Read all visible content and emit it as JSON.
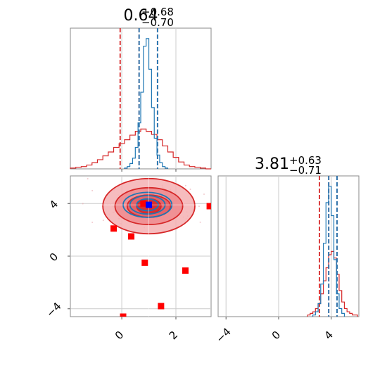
{
  "chart_data": {
    "type": "corner",
    "panels": [
      {
        "panel": "marginal-1",
        "type": "histogram",
        "title": {
          "value": "0.64",
          "plus": "+0.68",
          "minus": "−0.70"
        },
        "xlim": [
          -1.9,
          3.3
        ],
        "xticks": [
          0,
          2
        ],
        "series": [
          {
            "name": "",
            "color": "#d62728",
            "bins": [
              -1.9,
              -1.7,
              -1.5,
              -1.3,
              -1.1,
              -0.9,
              -0.7,
              -0.5,
              -0.3,
              -0.1,
              0.1,
              0.3,
              0.5,
              0.7,
              0.9,
              1.1,
              1.3,
              1.5,
              1.7,
              1.9,
              2.1,
              2.3,
              2.5,
              2.7,
              2.9,
              3.1,
              3.3
            ],
            "counts": [
              1,
              2,
              3,
              5,
              8,
              12,
              17,
              22,
              28,
              33,
              38,
              44,
              49,
              52,
              49,
              45,
              38,
              30,
              22,
              15,
              9,
              5,
              3,
              2,
              1,
              0
            ],
            "quantile_lines": [
              -0.06,
              0.64,
              1.32
            ]
          },
          {
            "name": "",
            "color": "#1f77b4",
            "bins": [
              0.1,
              0.2,
              0.3,
              0.4,
              0.5,
              0.6,
              0.7,
              0.8,
              0.9,
              1.0,
              1.1,
              1.2,
              1.3,
              1.4,
              1.5,
              1.6,
              1.7
            ],
            "counts": [
              1,
              3,
              7,
              14,
              28,
              60,
              100,
              160,
              170,
              130,
              80,
              40,
              18,
              8,
              3,
              1
            ],
            "quantile_lines": [
              0.64,
              1.32
            ]
          }
        ]
      },
      {
        "panel": "joint-2d",
        "type": "scatter+contour",
        "xlim": [
          -1.9,
          3.3
        ],
        "ylim": [
          -4.6,
          6.1
        ],
        "xticks": [
          0,
          2
        ],
        "yticks": [
          -4,
          0,
          4
        ],
        "contours": [
          {
            "color": "#d62728",
            "center": [
              1.0,
              3.8
            ],
            "levels": [
              [
                1.7,
                2.1
              ],
              [
                1.25,
                1.4
              ],
              [
                0.8,
                0.85
              ],
              [
                0.45,
                0.55
              ]
            ]
          },
          {
            "color": "#1f77b4",
            "center": [
              0.95,
              3.9
            ],
            "levels": [
              [
                0.9,
                0.95
              ],
              [
                0.65,
                0.7
              ],
              [
                0.4,
                0.45
              ]
            ]
          }
        ],
        "points": [
          {
            "x": -0.3,
            "y": 2.1,
            "color": "#ff0000"
          },
          {
            "x": 0.35,
            "y": 1.5,
            "color": "#ff0000"
          },
          {
            "x": 0.85,
            "y": -0.5,
            "color": "#ff0000"
          },
          {
            "x": 2.35,
            "y": -1.1,
            "color": "#ff0000"
          },
          {
            "x": 1.45,
            "y": -3.8,
            "color": "#ff0000"
          },
          {
            "x": 0.05,
            "y": -4.6,
            "color": "#ff0000"
          },
          {
            "x": 3.25,
            "y": 3.8,
            "color": "#ff0000"
          },
          {
            "x": 0.8,
            "y": 4.0,
            "color": "#ff0000"
          },
          {
            "x": 1.0,
            "y": 3.9,
            "color": "#0000ff"
          }
        ],
        "reference_lines": {
          "x": 1.0,
          "y": 3.9
        }
      },
      {
        "panel": "marginal-2",
        "type": "histogram",
        "title": {
          "value": "3.81",
          "plus": "+0.63",
          "minus": "−0.71"
        },
        "xlim": [
          -4.6,
          6.1
        ],
        "xticks": [
          -4,
          0,
          4
        ],
        "series": [
          {
            "name": "",
            "color": "#d62728",
            "bins": [
              2.2,
              2.4,
              2.6,
              2.8,
              3.0,
              3.2,
              3.4,
              3.6,
              3.8,
              4.0,
              4.2,
              4.4,
              4.6,
              4.8,
              5.0,
              5.2,
              5.4,
              5.6,
              5.8,
              6.0
            ],
            "counts": [
              1,
              2,
              3,
              5,
              8,
              14,
              22,
              30,
              38,
              40,
              36,
              26,
              16,
              9,
              5,
              3,
              2,
              1,
              1
            ],
            "quantile_lines": [
              3.1,
              3.81,
              4.44
            ]
          },
          {
            "name": "",
            "color": "#1f77b4",
            "bins": [
              2.6,
              2.8,
              3.0,
              3.2,
              3.4,
              3.6,
              3.8,
              4.0,
              4.2,
              4.4,
              4.6,
              4.8,
              5.0
            ],
            "counts": [
              1,
              3,
              8,
              20,
              45,
              70,
              80,
              62,
              35,
              14,
              5,
              2
            ],
            "quantile_lines": [
              3.81,
              4.44
            ]
          }
        ]
      }
    ]
  }
}
